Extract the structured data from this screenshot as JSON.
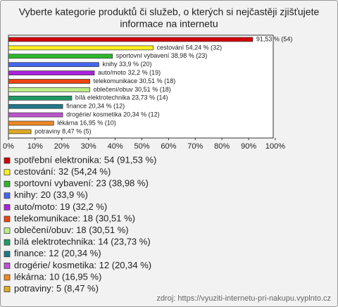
{
  "chart_data": {
    "type": "hbar",
    "title": [
      "Vyberte kategorie produktů či služeb, o kterých si nejčastěji zjišťujete",
      "informace na internetu"
    ],
    "categories": [
      "spotřební elektronika: 54 (91,53 %)",
      "cestování: 32 (54,24 %)",
      "sportovní vybavení: 23 (38,98 %)",
      "knihy: 20 (33,9 %)",
      "auto/moto: 19 (32,2 %)",
      "telekomunikace: 18 (30,51 %)",
      "oblečení/obuv: 18 (30,51 %)",
      "bílá elektrotechnika: 14 (23,73 %)",
      "finance: 12 (20,34 %)",
      "drogérie/ kosmetika: 12 (20,34 %)",
      "lékárna: 10 (16,95 %)",
      "potraviny: 5 (8,47 %)"
    ],
    "values": [
      91.53,
      54.24,
      38.98,
      33.9,
      32.2,
      30.51,
      30.51,
      23.73,
      20.34,
      20.34,
      16.95,
      8.47
    ],
    "value_labels": [
      "91,53 % (54)",
      "cestování 54,24 % (32)",
      "sportovní vybavení 38,98 % (23)",
      "knihy 33,9 % (20)",
      "auto/moto 32,2 % (19)",
      "telekomunikace 30,51 % (18)",
      "oblečení/obuv 30,51 % (18)",
      "bílá elektrotechnika 23,73 % (14)",
      "finance 20,34 % (12)",
      "drogérie/ kosmetika 20,34 % (12)",
      "lékárna 16,95 % (10)",
      "potraviny 8,47 % (5)"
    ],
    "colors": [
      "#d40000",
      "#ffee22",
      "#2db82d",
      "#4466ee",
      "#aa22dd",
      "#ee4411",
      "#bbee88",
      "#229966",
      "#227788",
      "#bb55cc",
      "#ee8822",
      "#ddaa22"
    ],
    "xlim": [
      0,
      100
    ],
    "xticks": [
      {
        "value": 0,
        "label": "0%"
      },
      {
        "value": 10,
        "label": "10%"
      },
      {
        "value": 20,
        "label": "20%"
      },
      {
        "value": 30,
        "label": "30%"
      },
      {
        "value": 40,
        "label": "40%"
      },
      {
        "value": 50,
        "label": "50%"
      },
      {
        "value": 60,
        "label": "60%"
      },
      {
        "value": 70,
        "label": "70%"
      },
      {
        "value": 80,
        "label": "80%"
      },
      {
        "value": 90,
        "label": "90%"
      },
      {
        "value": 100,
        "label": "100%"
      }
    ],
    "source": "zdroj: https://vyuziti-internetu-pri-nakupu.vyplnto.cz"
  }
}
